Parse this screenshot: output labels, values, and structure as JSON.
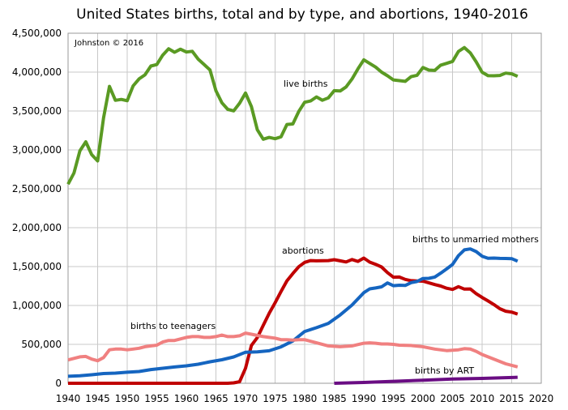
{
  "chart_data": {
    "type": "line",
    "title": "United States births, total and by type, and abortions, 1940-2016",
    "credit": "Johnston © 2016",
    "xlabel": "",
    "ylabel": "",
    "xlim": [
      1940,
      2020
    ],
    "ylim": [
      0,
      4500000
    ],
    "grid": true,
    "legend": "none (series labeled directly on plot)",
    "x_ticks": [
      1940,
      1945,
      1950,
      1955,
      1960,
      1965,
      1970,
      1975,
      1980,
      1985,
      1990,
      1995,
      2000,
      2005,
      2010,
      2015,
      2020
    ],
    "x_tick_labels": [
      "1940",
      "1945",
      "1950",
      "1955",
      "1960",
      "1965",
      "1970",
      "1975",
      "1980",
      "1985",
      "1990",
      "1995",
      "2000",
      "2005",
      "2010",
      "2015",
      "2020"
    ],
    "y_ticks": [
      0,
      500000,
      1000000,
      1500000,
      2000000,
      2500000,
      3000000,
      3500000,
      4000000,
      4500000
    ],
    "y_tick_labels": [
      "0",
      "500,000",
      "1,000,000",
      "1,500,000",
      "2,000,000",
      "2,500,000",
      "3,000,000",
      "3,500,000",
      "4,000,000",
      "4,500,000"
    ],
    "series": [
      {
        "name": "live births",
        "color": "#5a9a23",
        "x": [
          1940,
          1941,
          1942,
          1943,
          1944,
          1945,
          1946,
          1947,
          1948,
          1949,
          1950,
          1951,
          1952,
          1953,
          1954,
          1955,
          1956,
          1957,
          1958,
          1959,
          1960,
          1961,
          1962,
          1963,
          1964,
          1965,
          1966,
          1967,
          1968,
          1969,
          1970,
          1971,
          1972,
          1973,
          1974,
          1975,
          1976,
          1977,
          1978,
          1979,
          1980,
          1981,
          1982,
          1983,
          1984,
          1985,
          1986,
          1987,
          1988,
          1989,
          1990,
          1991,
          1992,
          1993,
          1994,
          1995,
          1996,
          1997,
          1998,
          1999,
          2000,
          2001,
          2002,
          2003,
          2004,
          2005,
          2006,
          2007,
          2008,
          2009,
          2010,
          2011,
          2012,
          2013,
          2014,
          2015,
          2016
        ],
        "y": [
          2559000,
          2703000,
          2989000,
          3104000,
          2939000,
          2858000,
          3411000,
          3817000,
          3637000,
          3649000,
          3632000,
          3823000,
          3913000,
          3965000,
          4078000,
          4097000,
          4218000,
          4300000,
          4255000,
          4295000,
          4258000,
          4268000,
          4167000,
          4098000,
          4027000,
          3760000,
          3606000,
          3521000,
          3502000,
          3600000,
          3731000,
          3556000,
          3258000,
          3137000,
          3160000,
          3144000,
          3168000,
          3327000,
          3333000,
          3494000,
          3612000,
          3629000,
          3681000,
          3639000,
          3669000,
          3761000,
          3757000,
          3809000,
          3910000,
          4041000,
          4158000,
          4111000,
          4065000,
          4000000,
          3953000,
          3900000,
          3891000,
          3881000,
          3942000,
          3959000,
          4059000,
          4026000,
          4022000,
          4090000,
          4112000,
          4138000,
          4266000,
          4316000,
          4248000,
          4131000,
          3999000,
          3954000,
          3953000,
          3957000,
          3988000,
          3978000,
          3946000
        ]
      },
      {
        "name": "abortions",
        "color": "#c00000",
        "x": [
          1940,
          1945,
          1950,
          1955,
          1960,
          1965,
          1966,
          1967,
          1968,
          1969,
          1970,
          1971,
          1972,
          1973,
          1974,
          1975,
          1976,
          1977,
          1978,
          1979,
          1980,
          1981,
          1982,
          1983,
          1984,
          1985,
          1986,
          1987,
          1988,
          1989,
          1990,
          1991,
          1992,
          1993,
          1994,
          1995,
          1996,
          1997,
          1998,
          1999,
          2000,
          2001,
          2002,
          2003,
          2004,
          2005,
          2006,
          2007,
          2008,
          2009,
          2010,
          2011,
          2012,
          2013,
          2014,
          2015,
          2016
        ],
        "y": [
          0,
          0,
          0,
          0,
          0,
          0,
          0,
          0,
          5000,
          20000,
          193000,
          486000,
          587000,
          745000,
          899000,
          1034000,
          1179000,
          1317000,
          1410000,
          1498000,
          1554000,
          1577000,
          1574000,
          1575000,
          1577000,
          1589000,
          1574000,
          1559000,
          1591000,
          1567000,
          1609000,
          1557000,
          1529000,
          1495000,
          1423000,
          1364000,
          1366000,
          1335000,
          1319000,
          1315000,
          1313000,
          1291000,
          1269000,
          1250000,
          1222000,
          1206000,
          1242000,
          1210000,
          1212000,
          1152000,
          1103000,
          1058000,
          1011000,
          958000,
          926000,
          915000,
          890000
        ]
      },
      {
        "name": "births to unmarried mothers",
        "color": "#1565c0",
        "x": [
          1940,
          1942,
          1944,
          1946,
          1948,
          1950,
          1952,
          1954,
          1956,
          1958,
          1960,
          1962,
          1964,
          1966,
          1968,
          1970,
          1972,
          1974,
          1976,
          1978,
          1980,
          1982,
          1984,
          1986,
          1988,
          1990,
          1991,
          1992,
          1993,
          1994,
          1995,
          1996,
          1997,
          1998,
          1999,
          2000,
          2001,
          2002,
          2003,
          2004,
          2005,
          2006,
          2007,
          2008,
          2009,
          2010,
          2011,
          2012,
          2013,
          2014,
          2015,
          2016
        ],
        "y": [
          90000,
          96000,
          109000,
          125000,
          130000,
          142000,
          151000,
          176000,
          193000,
          209000,
          224000,
          245000,
          276000,
          302000,
          339000,
          399000,
          403000,
          418000,
          468000,
          544000,
          666000,
          715000,
          770000,
          878000,
          1005000,
          1165000,
          1214000,
          1225000,
          1240000,
          1290000,
          1254000,
          1260000,
          1257000,
          1294000,
          1308000,
          1347000,
          1349000,
          1366000,
          1416000,
          1470000,
          1527000,
          1641000,
          1715000,
          1727000,
          1693000,
          1633000,
          1606000,
          1609000,
          1605000,
          1604000,
          1602000,
          1570000
        ]
      },
      {
        "name": "births to teenagers",
        "color": "#f08080",
        "x": [
          1940,
          1942,
          1943,
          1944,
          1945,
          1946,
          1947,
          1948,
          1949,
          1950,
          1951,
          1952,
          1953,
          1954,
          1955,
          1956,
          1957,
          1958,
          1959,
          1960,
          1961,
          1962,
          1963,
          1964,
          1965,
          1966,
          1967,
          1968,
          1969,
          1970,
          1971,
          1972,
          1973,
          1974,
          1975,
          1976,
          1977,
          1978,
          1979,
          1980,
          1982,
          1984,
          1986,
          1988,
          1990,
          1991,
          1992,
          1993,
          1994,
          1995,
          1996,
          1998,
          2000,
          2002,
          2004,
          2006,
          2007,
          2008,
          2009,
          2010,
          2012,
          2014,
          2016
        ],
        "y": [
          300000,
          340000,
          345000,
          310000,
          290000,
          330000,
          430000,
          440000,
          440000,
          430000,
          440000,
          450000,
          470000,
          480000,
          490000,
          530000,
          550000,
          550000,
          570000,
          590000,
          600000,
          600000,
          590000,
          590000,
          600000,
          620000,
          600000,
          600000,
          610000,
          645000,
          630000,
          615000,
          600000,
          590000,
          580000,
          560000,
          560000,
          555000,
          560000,
          560000,
          520000,
          480000,
          470000,
          480000,
          515000,
          520000,
          515000,
          505000,
          505000,
          500000,
          490000,
          485000,
          470000,
          440000,
          420000,
          430000,
          445000,
          440000,
          410000,
          370000,
          310000,
          250000,
          210000
        ]
      },
      {
        "name": "births by ART",
        "color": "#6a0d83",
        "x": [
          1985,
          1990,
          1995,
          2000,
          2005,
          2010,
          2016
        ],
        "y": [
          0,
          10000,
          25000,
          40000,
          55000,
          62000,
          77000
        ]
      }
    ]
  },
  "annotations": {
    "credit": "Johnston © 2016",
    "live_births": "live births",
    "abortions": "abortions",
    "unmarried": "births to unmarried mothers",
    "teenagers": "births to teenagers",
    "art": "births by ART"
  }
}
